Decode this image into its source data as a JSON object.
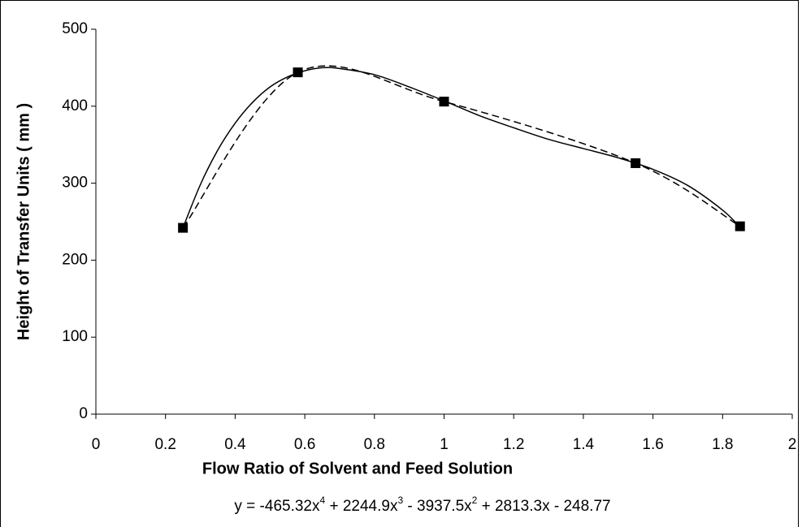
{
  "chart_data": {
    "type": "scatter",
    "x_label": "Flow Ratio of Solvent and Feed Solution",
    "y_label": "Height of Transfer Units ( mm )",
    "equation": [
      "y = -465.32x",
      "4",
      " + 2244.9x",
      "3",
      " - 3937.5x",
      "2",
      " + 2813.3x - 248.77"
    ],
    "x": [
      0.25,
      0.58,
      1.0,
      1.55,
      1.85
    ],
    "series": [
      {
        "color": "#000000",
        "values": [
          242,
          444,
          406,
          326,
          244
        ],
        "marker": "square",
        "line": "dashed"
      }
    ],
    "trendline": {
      "color": "#000000",
      "line": "solid",
      "x": [
        0.25,
        0.3,
        0.35,
        0.4,
        0.45,
        0.5,
        0.55,
        0.6,
        0.65,
        0.7,
        0.8,
        0.9,
        1.0,
        1.1,
        1.2,
        1.3,
        1.4,
        1.5,
        1.6,
        1.7,
        1.8,
        1.85
      ],
      "values": [
        242,
        298,
        343,
        378,
        405,
        425,
        438,
        446,
        450,
        449,
        441,
        425,
        407,
        388,
        372,
        357,
        345,
        333,
        318,
        297,
        265,
        243
      ]
    },
    "xlim": [
      0,
      2
    ],
    "xticks": [
      0,
      0.2,
      0.4,
      0.6,
      0.8,
      1,
      1.2,
      1.4,
      1.6,
      1.8,
      2
    ],
    "ylim": [
      0,
      500
    ],
    "yticks": [
      0,
      100,
      200,
      300,
      400,
      500
    ],
    "grid": false
  }
}
